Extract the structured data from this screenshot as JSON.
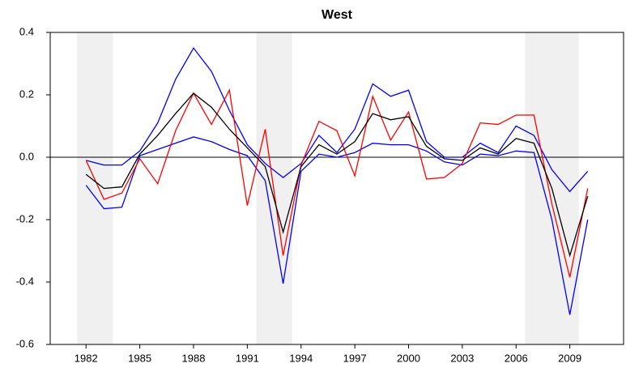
{
  "chart_data": {
    "type": "line",
    "title": "West",
    "x": [
      1982,
      1983,
      1984,
      1985,
      1986,
      1987,
      1988,
      1989,
      1990,
      1991,
      1992,
      1993,
      1994,
      1995,
      1996,
      1997,
      1998,
      1999,
      2000,
      2001,
      2002,
      2003,
      2004,
      2005,
      2006,
      2007,
      2008,
      2009,
      2010
    ],
    "series": [
      {
        "color": "#0000ff",
        "values": [
          -0.01,
          -0.025,
          -0.025,
          0.02,
          0.11,
          0.25,
          0.35,
          0.275,
          0.15,
          0.04,
          -0.02,
          -0.065,
          -0.02,
          0.07,
          0.015,
          0.09,
          0.235,
          0.195,
          0.215,
          0.05,
          0,
          0,
          0.045,
          0.015,
          0.1,
          0.07,
          -0.04,
          -0.11,
          -0.045
        ]
      },
      {
        "color": "#0000ff",
        "values": [
          -0.09,
          -0.165,
          -0.16,
          0.005,
          0.025,
          0.045,
          0.065,
          0.05,
          0.025,
          0.005,
          -0.075,
          -0.405,
          -0.045,
          0.01,
          0,
          0.015,
          0.045,
          0.04,
          0.04,
          0.02,
          -0.015,
          -0.025,
          0.01,
          0.005,
          0.02,
          0.015,
          -0.2,
          -0.505,
          -0.2
        ]
      },
      {
        "color": "#ff0000",
        "values": [
          -0.01,
          -0.135,
          -0.115,
          -0.005,
          -0.085,
          0.085,
          0.205,
          0.105,
          0.215,
          -0.155,
          0.09,
          -0.315,
          -0.025,
          0.115,
          0.085,
          -0.06,
          0.195,
          0.055,
          0.145,
          -0.07,
          -0.065,
          -0.02,
          0.11,
          0.105,
          0.135,
          0.135,
          -0.15,
          -0.385,
          -0.1
        ]
      },
      {
        "color": "#000000",
        "values": [
          -0.055,
          -0.1,
          -0.095,
          0.01,
          0.07,
          0.14,
          0.205,
          0.16,
          0.09,
          0.03,
          -0.03,
          -0.24,
          -0.03,
          0.04,
          0.01,
          0.05,
          0.14,
          0.12,
          0.13,
          0.035,
          -0.005,
          -0.01,
          0.03,
          0.01,
          0.06,
          0.045,
          -0.1,
          -0.315,
          -0.125
        ]
      }
    ],
    "shaded_periods": [
      [
        1981.5,
        1983.5
      ],
      [
        1991.5,
        1993.5
      ],
      [
        2006.5,
        2009.5
      ]
    ],
    "shade_color": "#f0f0f0",
    "hline": 0,
    "xlim": [
      1980,
      2012
    ],
    "xticks": [
      1982,
      1985,
      1988,
      1991,
      1994,
      1997,
      2000,
      2003,
      2006,
      2009
    ],
    "ylim": [
      -0.6,
      0.4
    ],
    "yticks": [
      -0.6,
      -0.4,
      -0.2,
      {
        "value": 0,
        "label": "0.0"
      },
      0.2,
      0.4
    ]
  }
}
